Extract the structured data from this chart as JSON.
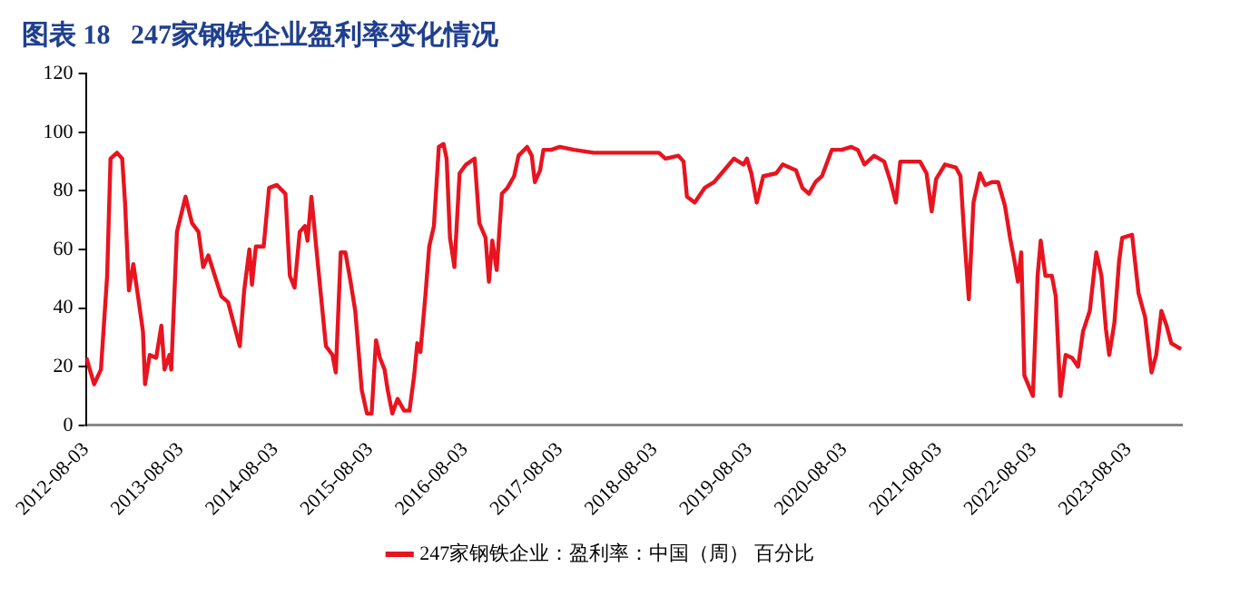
{
  "chart_data": {
    "type": "line",
    "title": "图表 18   247家钢铁企业盈利率变化情况",
    "xlim": [
      "2012-08-03",
      "2024-02-25"
    ],
    "xticks": [
      "2012-08-03",
      "2013-08-03",
      "2014-08-03",
      "2015-08-03",
      "2016-08-03",
      "2017-08-03",
      "2018-08-03",
      "2019-08-03",
      "2020-08-03",
      "2021-08-03",
      "2022-08-03",
      "2023-08-03"
    ],
    "ylim": [
      0,
      120
    ],
    "yticks": [
      0,
      20,
      40,
      60,
      80,
      100,
      120
    ],
    "grid": false,
    "legend": "bottom",
    "marker": "none",
    "line_style": "solid",
    "series": [
      {
        "name": "247家钢铁企业：盈利率：中国（周） 百分比",
        "color": "#e8141f",
        "x": [
          "2012-08-05",
          "2012-09-04",
          "2012-09-30",
          "2012-10-24",
          "2012-11-06",
          "2012-12-01",
          "2012-12-21",
          "2013-01-01",
          "2013-01-16",
          "2013-02-02",
          "2013-02-20",
          "2013-03-11",
          "2013-03-19",
          "2013-04-06",
          "2013-05-01",
          "2013-05-21",
          "2013-06-02",
          "2013-06-21",
          "2013-06-28",
          "2013-07-20",
          "2013-08-22",
          "2013-09-16",
          "2013-10-11",
          "2013-10-29",
          "2013-11-18",
          "2013-12-13",
          "2014-01-07",
          "2014-02-02",
          "2014-02-26",
          "2014-03-19",
          "2014-04-05",
          "2014-04-25",
          "2014-05-05",
          "2014-05-20",
          "2014-06-19",
          "2014-07-10",
          "2014-08-09",
          "2014-09-11",
          "2014-09-28",
          "2014-10-16",
          "2014-11-05",
          "2014-11-25",
          "2014-12-05",
          "2014-12-20",
          "2015-01-15",
          "2015-02-14",
          "2015-03-11",
          "2015-03-24",
          "2015-04-12",
          "2015-04-30",
          "2015-05-20",
          "2015-06-07",
          "2015-07-02",
          "2015-07-22",
          "2015-08-09",
          "2015-08-26",
          "2015-09-10",
          "2015-09-28",
          "2015-10-10",
          "2015-10-28",
          "2015-11-17",
          "2015-12-12",
          "2016-01-02",
          "2016-01-20",
          "2016-02-01",
          "2016-02-13",
          "2016-03-03",
          "2016-03-18",
          "2016-04-05",
          "2016-04-24",
          "2016-05-12",
          "2016-05-24",
          "2016-06-06",
          "2016-06-23",
          "2016-07-13",
          "2016-08-07",
          "2016-09-09",
          "2016-09-27",
          "2016-10-21",
          "2016-11-03",
          "2016-11-16",
          "2016-12-03",
          "2016-12-23",
          "2017-01-13",
          "2017-02-08",
          "2017-02-25",
          "2017-03-30",
          "2017-04-17",
          "2017-04-29",
          "2017-05-19",
          "2017-06-01",
          "2017-07-01",
          "2017-08-03",
          "2017-09-27",
          "2017-12-11",
          "2018-02-24",
          "2018-06-06",
          "2018-08-20",
          "2018-09-14",
          "2018-11-03",
          "2018-11-23",
          "2018-12-06",
          "2019-01-05",
          "2019-02-12",
          "2019-03-21",
          "2019-04-28",
          "2019-06-05",
          "2019-07-12",
          "2019-07-25",
          "2019-08-11",
          "2019-09-01",
          "2019-09-26",
          "2019-11-15",
          "2019-12-10",
          "2020-01-30",
          "2020-02-24",
          "2020-03-20",
          "2020-04-14",
          "2020-05-09",
          "2020-06-16",
          "2020-07-24",
          "2020-08-30",
          "2020-09-24",
          "2020-10-20",
          "2020-11-26",
          "2021-01-04",
          "2021-01-29",
          "2021-02-18",
          "2021-03-07",
          "2021-05-22",
          "2021-06-16",
          "2021-07-06",
          "2021-07-23",
          "2021-08-26",
          "2021-10-07",
          "2021-10-25",
          "2021-11-09",
          "2021-11-26",
          "2021-12-14",
          "2022-01-08",
          "2022-01-28",
          "2022-02-23",
          "2022-03-19",
          "2022-04-14",
          "2022-05-04",
          "2022-05-21",
          "2022-06-03",
          "2022-06-16",
          "2022-06-28",
          "2022-07-31",
          "2022-08-18",
          "2022-08-30",
          "2022-09-17",
          "2022-10-12",
          "2022-10-27",
          "2022-11-14",
          "2022-12-04",
          "2022-12-29",
          "2023-01-21",
          "2023-02-09",
          "2023-03-07",
          "2023-04-01",
          "2023-04-21",
          "2023-05-08",
          "2023-05-21",
          "2023-06-10",
          "2023-06-28",
          "2023-07-10",
          "2023-08-17",
          "2023-09-11",
          "2023-10-06",
          "2023-10-31",
          "2023-11-18",
          "2023-12-08",
          "2023-12-28",
          "2024-01-15",
          "2024-02-22"
        ],
        "values": [
          23,
          14,
          19,
          51,
          91,
          93,
          91,
          76,
          46,
          55,
          44,
          32,
          14,
          24,
          23,
          34,
          19,
          24,
          19,
          66,
          78,
          69,
          66,
          54,
          58,
          51,
          44,
          42,
          34,
          27,
          46,
          60,
          48,
          61,
          61,
          81,
          82,
          79,
          51,
          47,
          66,
          68,
          63,
          78,
          54,
          27,
          24,
          18,
          59,
          59,
          49,
          39,
          12,
          4,
          4,
          29,
          23,
          19,
          12,
          4,
          9,
          5,
          5,
          17,
          28,
          25,
          44,
          61,
          68,
          95,
          96,
          91,
          64,
          54,
          86,
          89,
          91,
          69,
          64,
          49,
          63,
          53,
          79,
          81,
          85,
          92,
          95,
          92,
          83,
          87,
          94,
          94,
          95,
          94,
          93,
          93,
          93,
          93,
          91,
          92,
          90,
          78,
          76,
          81,
          83,
          87,
          91,
          89,
          91,
          86,
          76,
          85,
          86,
          89,
          87,
          81,
          79,
          83,
          85,
          94,
          94,
          95,
          94,
          89,
          92,
          90,
          83,
          76,
          90,
          90,
          86,
          73,
          84,
          89,
          88,
          85,
          64,
          43,
          76,
          86,
          82,
          83,
          83,
          75,
          64,
          56,
          49,
          59,
          17,
          10,
          51,
          63,
          51,
          51,
          44,
          10,
          24,
          23,
          20,
          32,
          39,
          59,
          51,
          33,
          24,
          35,
          56,
          64,
          65,
          45,
          37,
          18,
          24,
          39,
          34,
          28,
          26
        ]
      }
    ]
  }
}
